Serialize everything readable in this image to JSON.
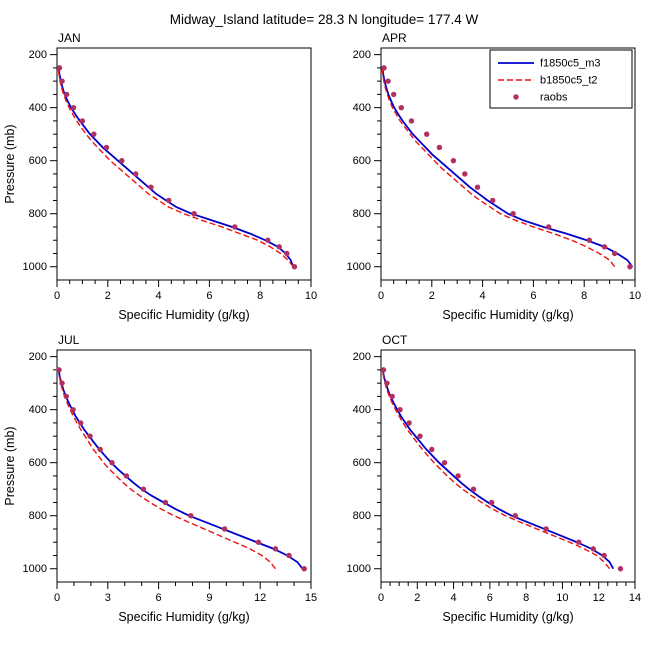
{
  "title": "Midway_Island  latitude= 28.3 N longitude= 177.4 W",
  "colors": {
    "model1": "#0000cd",
    "model2": "#ee1111",
    "raobs": "#b03060",
    "axis": "#000000"
  },
  "legend": {
    "entries": [
      {
        "label": "f1850c5_m3",
        "kind": "line",
        "dash": "solid",
        "color": "#0000cd"
      },
      {
        "label": "b1850c5_t2",
        "kind": "line",
        "dash": "dashed",
        "color": "#ee1111"
      },
      {
        "label": "raobs",
        "kind": "dot",
        "dash": "none",
        "color": "#b03060"
      }
    ]
  },
  "chart_data": [
    {
      "type": "line",
      "label": "JAN",
      "xlabel": "Specific Humidity (g/kg)",
      "ylabel": "Pressure (mb)",
      "show_ylabel": true,
      "show_legend": false,
      "xlim": [
        0,
        10
      ],
      "xticks": [
        0,
        2,
        4,
        6,
        8,
        10
      ],
      "xminor_step": 0.5,
      "ylim": [
        1050,
        175
      ],
      "yticks": [
        200,
        400,
        600,
        800,
        1000
      ],
      "yminor_step": 50,
      "model_pressures": [
        1000,
        975,
        950,
        925,
        900,
        875,
        850,
        825,
        800,
        775,
        750,
        725,
        700,
        675,
        650,
        625,
        600,
        575,
        550,
        525,
        500,
        475,
        450,
        425,
        400,
        375,
        350,
        325,
        300,
        275,
        250
      ],
      "series": [
        {
          "name": "f1850c5_m3",
          "kind": "line",
          "dash": "solid",
          "color": "#0000cd",
          "values": [
            9.3,
            9.2,
            9.0,
            8.7,
            8.2,
            7.6,
            6.9,
            6.1,
            5.3,
            4.7,
            4.3,
            3.9,
            3.6,
            3.3,
            3.0,
            2.7,
            2.4,
            2.1,
            1.8,
            1.55,
            1.3,
            1.1,
            0.9,
            0.72,
            0.55,
            0.42,
            0.3,
            0.22,
            0.15,
            0.1,
            0.06
          ]
        },
        {
          "name": "b1850c5_t2",
          "kind": "line",
          "dash": "dashed",
          "color": "#ee1111",
          "values": [
            9.3,
            9.1,
            8.8,
            8.4,
            7.9,
            7.2,
            6.5,
            5.7,
            5.0,
            4.4,
            4.0,
            3.6,
            3.3,
            3.0,
            2.7,
            2.4,
            2.1,
            1.85,
            1.6,
            1.35,
            1.15,
            0.95,
            0.78,
            0.62,
            0.48,
            0.36,
            0.26,
            0.18,
            0.12,
            0.08,
            0.05
          ]
        },
        {
          "name": "raobs",
          "kind": "scatter",
          "color": "#b03060",
          "pressures": [
            1000,
            950,
            925,
            900,
            850,
            800,
            750,
            700,
            650,
            600,
            550,
            500,
            450,
            400,
            350,
            300,
            250
          ],
          "values": [
            9.35,
            9.05,
            8.75,
            8.3,
            7.0,
            5.4,
            4.4,
            3.7,
            3.1,
            2.55,
            1.95,
            1.45,
            1.0,
            0.65,
            0.38,
            0.2,
            0.1
          ]
        }
      ]
    },
    {
      "type": "line",
      "label": "APR",
      "xlabel": "Specific Humidity (g/kg)",
      "ylabel": "Pressure (mb)",
      "show_ylabel": false,
      "show_legend": true,
      "xlim": [
        0,
        10
      ],
      "xticks": [
        0,
        2,
        4,
        6,
        8,
        10
      ],
      "xminor_step": 0.5,
      "ylim": [
        1050,
        175
      ],
      "yticks": [
        200,
        400,
        600,
        800,
        1000
      ],
      "yminor_step": 50,
      "model_pressures": [
        1000,
        975,
        950,
        925,
        900,
        875,
        850,
        825,
        800,
        775,
        750,
        725,
        700,
        675,
        650,
        625,
        600,
        575,
        550,
        525,
        500,
        475,
        450,
        425,
        400,
        375,
        350,
        325,
        300,
        275,
        250
      ],
      "series": [
        {
          "name": "f1850c5_m3",
          "kind": "line",
          "dash": "solid",
          "color": "#0000cd",
          "values": [
            9.9,
            9.7,
            9.3,
            8.8,
            8.1,
            7.3,
            6.4,
            5.6,
            5.0,
            4.6,
            4.2,
            3.85,
            3.5,
            3.2,
            2.9,
            2.6,
            2.3,
            2.0,
            1.75,
            1.5,
            1.25,
            1.05,
            0.85,
            0.68,
            0.52,
            0.4,
            0.29,
            0.21,
            0.14,
            0.09,
            0.06
          ]
        },
        {
          "name": "b1850c5_t2",
          "kind": "line",
          "dash": "dashed",
          "color": "#ee1111",
          "values": [
            9.2,
            9.0,
            8.6,
            8.1,
            7.5,
            6.8,
            6.0,
            5.3,
            4.7,
            4.3,
            3.9,
            3.55,
            3.25,
            2.95,
            2.65,
            2.35,
            2.1,
            1.85,
            1.6,
            1.35,
            1.15,
            0.95,
            0.75,
            0.6,
            0.45,
            0.34,
            0.25,
            0.17,
            0.11,
            0.07,
            0.04
          ]
        },
        {
          "name": "raobs",
          "kind": "scatter",
          "color": "#b03060",
          "pressures": [
            1000,
            950,
            925,
            900,
            850,
            800,
            750,
            700,
            650,
            600,
            550,
            500,
            450,
            400,
            350,
            300,
            250
          ],
          "values": [
            9.8,
            9.2,
            8.8,
            8.2,
            6.6,
            5.2,
            4.4,
            3.8,
            3.3,
            2.85,
            2.3,
            1.8,
            1.2,
            0.8,
            0.5,
            0.28,
            0.12
          ]
        }
      ]
    },
    {
      "type": "line",
      "label": "JUL",
      "xlabel": "Specific Humidity (g/kg)",
      "ylabel": "Pressure (mb)",
      "show_ylabel": true,
      "show_legend": false,
      "xlim": [
        0,
        15
      ],
      "xticks": [
        0,
        3,
        6,
        9,
        12,
        15
      ],
      "xminor_step": 1,
      "ylim": [
        1050,
        175
      ],
      "yticks": [
        200,
        400,
        600,
        800,
        1000
      ],
      "yminor_step": 50,
      "model_pressures": [
        1000,
        975,
        950,
        925,
        900,
        875,
        850,
        825,
        800,
        775,
        750,
        725,
        700,
        675,
        650,
        625,
        600,
        575,
        550,
        525,
        500,
        475,
        450,
        425,
        400,
        375,
        350,
        325,
        300,
        275,
        250
      ],
      "series": [
        {
          "name": "f1850c5_m3",
          "kind": "line",
          "dash": "solid",
          "color": "#0000cd",
          "values": [
            14.5,
            14.2,
            13.6,
            12.8,
            11.8,
            10.8,
            9.8,
            8.8,
            7.8,
            7.0,
            6.3,
            5.6,
            5.0,
            4.5,
            4.05,
            3.6,
            3.2,
            2.85,
            2.5,
            2.2,
            1.9,
            1.6,
            1.35,
            1.1,
            0.9,
            0.7,
            0.52,
            0.38,
            0.26,
            0.16,
            0.1
          ]
        },
        {
          "name": "b1850c5_t2",
          "kind": "line",
          "dash": "dashed",
          "color": "#ee1111",
          "values": [
            12.9,
            12.6,
            12.1,
            11.4,
            10.5,
            9.6,
            8.7,
            7.8,
            6.9,
            6.15,
            5.5,
            4.9,
            4.35,
            3.9,
            3.5,
            3.1,
            2.75,
            2.45,
            2.15,
            1.9,
            1.65,
            1.4,
            1.18,
            0.97,
            0.78,
            0.6,
            0.45,
            0.32,
            0.22,
            0.14,
            0.08
          ]
        },
        {
          "name": "raobs",
          "kind": "scatter",
          "color": "#b03060",
          "pressures": [
            1000,
            950,
            925,
            900,
            850,
            800,
            750,
            700,
            650,
            600,
            550,
            500,
            450,
            400,
            350,
            300,
            250
          ],
          "values": [
            14.6,
            13.7,
            12.9,
            11.9,
            9.9,
            7.9,
            6.4,
            5.1,
            4.1,
            3.25,
            2.55,
            1.95,
            1.4,
            0.95,
            0.55,
            0.3,
            0.12
          ]
        }
      ]
    },
    {
      "type": "line",
      "label": "OCT",
      "xlabel": "Specific Humidity (g/kg)",
      "ylabel": "Pressure (mb)",
      "show_ylabel": false,
      "show_legend": false,
      "xlim": [
        0,
        14
      ],
      "xticks": [
        0,
        2,
        4,
        6,
        8,
        10,
        12,
        14
      ],
      "xminor_step": 0.5,
      "ylim": [
        1050,
        175
      ],
      "yticks": [
        200,
        400,
        600,
        800,
        1000
      ],
      "yminor_step": 50,
      "model_pressures": [
        1000,
        975,
        950,
        925,
        900,
        875,
        850,
        825,
        800,
        775,
        750,
        725,
        700,
        675,
        650,
        625,
        600,
        575,
        550,
        525,
        500,
        475,
        450,
        425,
        400,
        375,
        350,
        325,
        300,
        275,
        250
      ],
      "series": [
        {
          "name": "f1850c5_m3",
          "kind": "line",
          "dash": "solid",
          "color": "#0000cd",
          "values": [
            12.8,
            12.6,
            12.2,
            11.6,
            10.8,
            9.9,
            9.0,
            8.1,
            7.2,
            6.5,
            5.9,
            5.35,
            4.85,
            4.4,
            4.0,
            3.6,
            3.2,
            2.85,
            2.5,
            2.2,
            1.9,
            1.6,
            1.35,
            1.1,
            0.9,
            0.7,
            0.52,
            0.38,
            0.26,
            0.16,
            0.1
          ]
        },
        {
          "name": "b1850c5_t2",
          "kind": "line",
          "dash": "dashed",
          "color": "#ee1111",
          "values": [
            12.6,
            12.3,
            11.9,
            11.2,
            10.4,
            9.5,
            8.6,
            7.7,
            6.85,
            6.15,
            5.55,
            5.0,
            4.5,
            4.05,
            3.65,
            3.28,
            2.92,
            2.6,
            2.28,
            2.0,
            1.72,
            1.45,
            1.22,
            1.0,
            0.8,
            0.62,
            0.46,
            0.33,
            0.22,
            0.14,
            0.08
          ]
        },
        {
          "name": "raobs",
          "kind": "scatter",
          "color": "#b03060",
          "pressures": [
            1000,
            950,
            925,
            900,
            850,
            800,
            750,
            700,
            650,
            600,
            550,
            500,
            450,
            400,
            350,
            300,
            250
          ],
          "values": [
            13.2,
            12.3,
            11.7,
            10.9,
            9.1,
            7.4,
            6.1,
            5.1,
            4.25,
            3.5,
            2.8,
            2.15,
            1.55,
            1.05,
            0.62,
            0.33,
            0.14
          ]
        }
      ]
    }
  ]
}
